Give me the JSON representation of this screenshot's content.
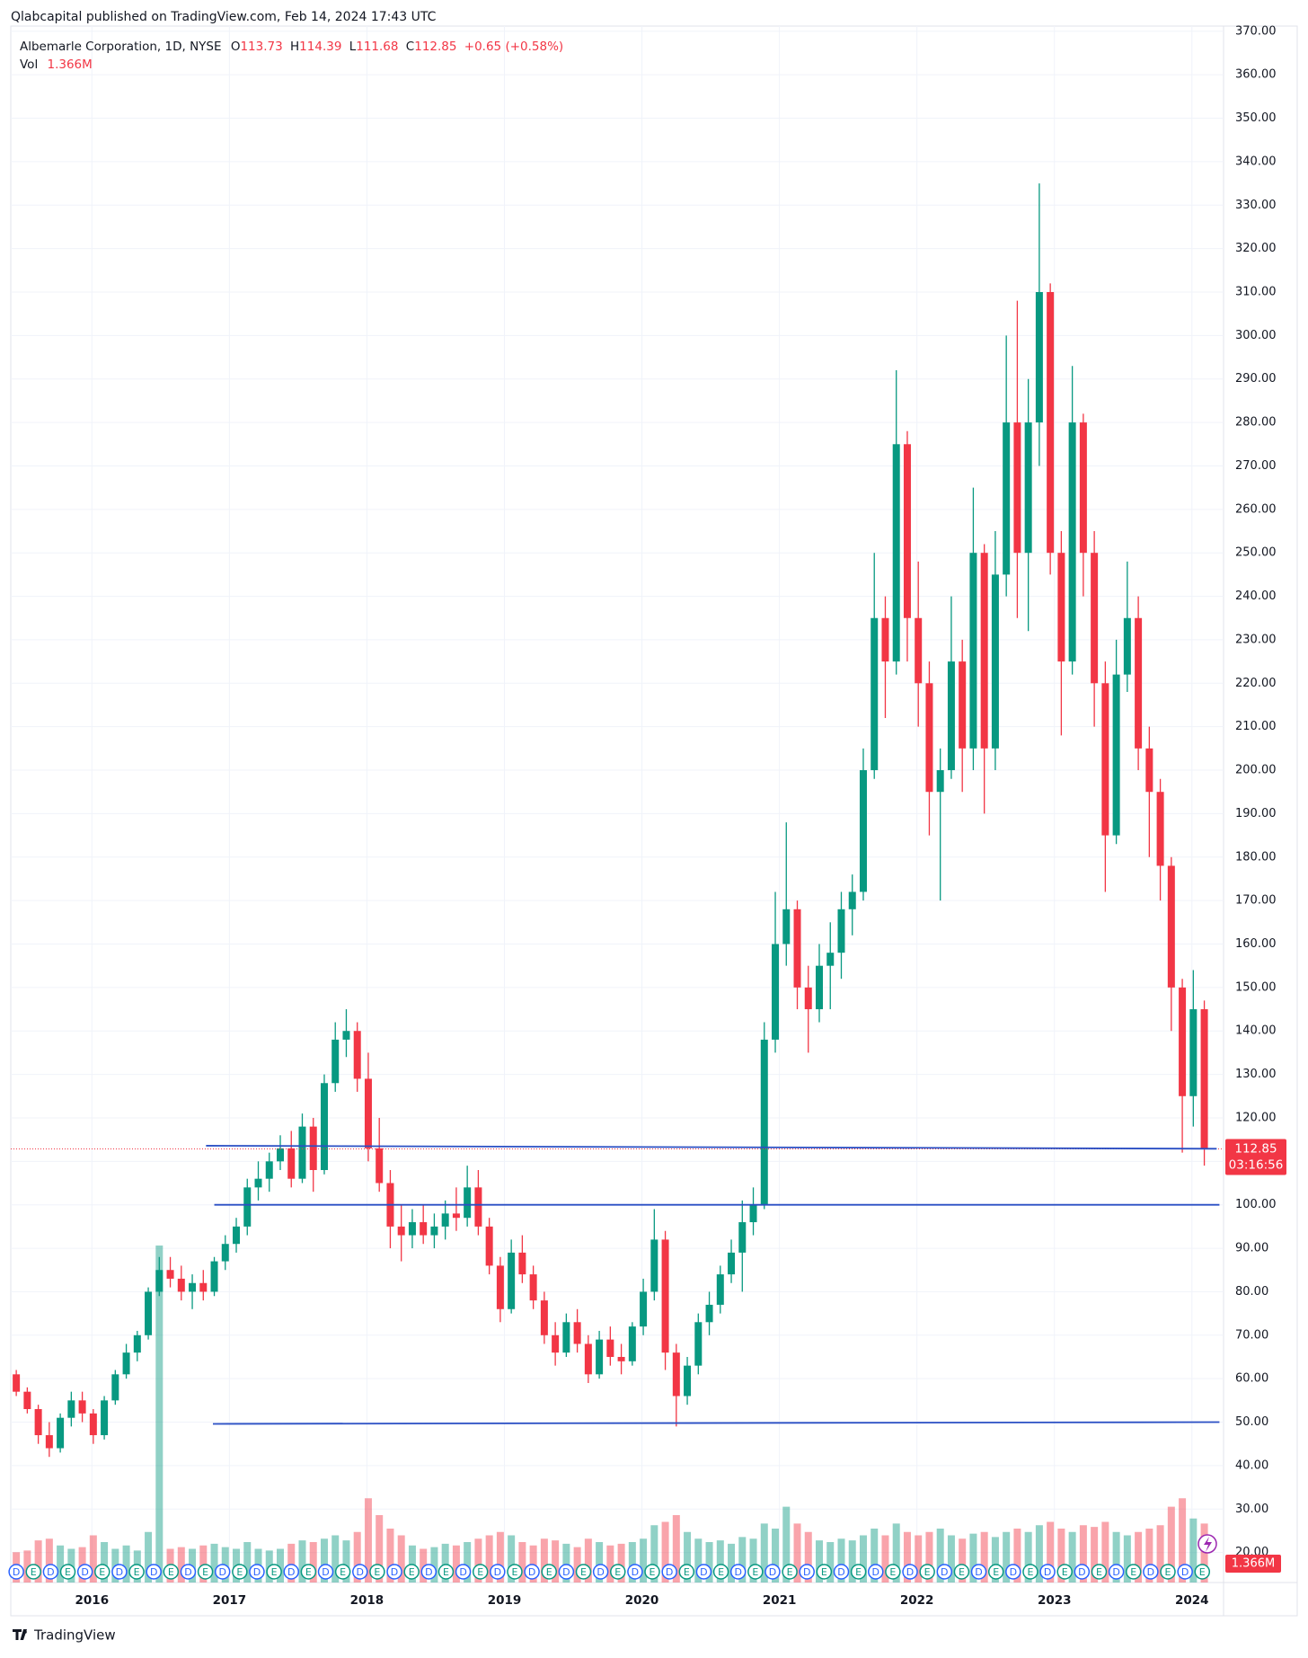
{
  "header": "Qlabcapital published on TradingView.com, Feb 14, 2024 17:43 UTC",
  "legend": {
    "symbol": "Albemarle Corporation, 1D, NYSE",
    "open_label": "O",
    "open": 113.73,
    "high_label": "H",
    "high": 114.39,
    "low_label": "L",
    "low": 111.68,
    "close_label": "C",
    "close": 112.85,
    "change": "+0.65 (+0.58%)",
    "vol_label": "Vol",
    "vol": "1.366M"
  },
  "countdown": "03:16:56",
  "footer": "TradingView",
  "chart_data": {
    "type": "candlestick",
    "up_color": "#089981",
    "down_color": "#f23645",
    "xlim": [
      2015.41,
      2024.23
    ],
    "xticks": [
      2016,
      2017,
      2018,
      2019,
      2020,
      2021,
      2022,
      2023,
      2024
    ],
    "ylim": [
      13.1,
      371.2
    ],
    "yticks": [
      {
        "value": 20,
        "label": "20.00"
      },
      {
        "value": 30,
        "label": "30.00"
      },
      {
        "value": 40,
        "label": "40.00"
      },
      {
        "value": 50,
        "label": "50.00"
      },
      {
        "value": 60,
        "label": "60.00"
      },
      {
        "value": 70,
        "label": "70.00"
      },
      {
        "value": 80,
        "label": "80.00"
      },
      {
        "value": 90,
        "label": "90.00"
      },
      {
        "value": 100,
        "label": "100.00"
      },
      {
        "value": 110,
        "label": "110.00"
      },
      {
        "value": 120,
        "label": "120.00"
      },
      {
        "value": 130,
        "label": "130.00"
      },
      {
        "value": 140,
        "label": "140.00"
      },
      {
        "value": 150,
        "label": "150.00"
      },
      {
        "value": 160,
        "label": "160.00"
      },
      {
        "value": 170,
        "label": "170.00"
      },
      {
        "value": 180,
        "label": "180.00"
      },
      {
        "value": 190,
        "label": "190.00"
      },
      {
        "value": 200,
        "label": "200.00"
      },
      {
        "value": 210,
        "label": "210.00"
      },
      {
        "value": 220,
        "label": "220.00"
      },
      {
        "value": 230,
        "label": "230.00"
      },
      {
        "value": 240,
        "label": "240.00"
      },
      {
        "value": 250,
        "label": "250.00"
      },
      {
        "value": 260,
        "label": "260.00"
      },
      {
        "value": 270,
        "label": "270.00"
      },
      {
        "value": 280,
        "label": "280.00"
      },
      {
        "value": 290,
        "label": "290.00"
      },
      {
        "value": 300,
        "label": "300.00"
      },
      {
        "value": 310,
        "label": "310.00"
      },
      {
        "value": 320,
        "label": "320.00"
      },
      {
        "value": 330,
        "label": "330.00"
      },
      {
        "value": 340,
        "label": "340.00"
      },
      {
        "value": 350,
        "label": "350.00"
      },
      {
        "value": 360,
        "label": "360.00"
      },
      {
        "value": 370,
        "label": "370.00"
      }
    ],
    "grid": true,
    "vol_ylim": [
      0,
      8
    ],
    "candles": {
      "x": [
        2015.45,
        2015.53,
        2015.61,
        2015.69,
        2015.77,
        2015.85,
        2015.93,
        2016.01,
        2016.09,
        2016.17,
        2016.25,
        2016.33,
        2016.41,
        2016.49,
        2016.57,
        2016.65,
        2016.73,
        2016.81,
        2016.89,
        2016.97,
        2017.05,
        2017.13,
        2017.21,
        2017.29,
        2017.37,
        2017.45,
        2017.53,
        2017.61,
        2017.69,
        2017.77,
        2017.85,
        2017.93,
        2018.01,
        2018.09,
        2018.17,
        2018.25,
        2018.33,
        2018.41,
        2018.49,
        2018.57,
        2018.65,
        2018.73,
        2018.81,
        2018.89,
        2018.97,
        2019.05,
        2019.13,
        2019.21,
        2019.29,
        2019.37,
        2019.45,
        2019.53,
        2019.61,
        2019.69,
        2019.77,
        2019.85,
        2019.93,
        2020.01,
        2020.09,
        2020.17,
        2020.25,
        2020.33,
        2020.41,
        2020.49,
        2020.57,
        2020.65,
        2020.73,
        2020.81,
        2020.89,
        2020.97,
        2021.05,
        2021.13,
        2021.21,
        2021.29,
        2021.37,
        2021.45,
        2021.53,
        2021.61,
        2021.69,
        2021.77,
        2021.85,
        2021.93,
        2022.01,
        2022.09,
        2022.17,
        2022.25,
        2022.33,
        2022.41,
        2022.49,
        2022.57,
        2022.65,
        2022.73,
        2022.81,
        2022.89,
        2022.97,
        2023.05,
        2023.13,
        2023.21,
        2023.29,
        2023.37,
        2023.45,
        2023.53,
        2023.61,
        2023.69,
        2023.77,
        2023.85,
        2023.93,
        2024.01,
        2024.09
      ],
      "open": [
        61,
        57,
        53,
        47,
        44,
        51,
        55,
        52,
        47,
        55,
        61,
        66,
        70,
        80,
        85,
        83,
        80,
        82,
        80,
        87,
        91,
        95,
        104,
        106,
        110,
        113,
        106,
        118,
        108,
        128,
        138,
        140,
        129,
        113,
        105,
        95,
        93,
        96,
        93,
        95,
        98,
        97,
        104,
        95,
        86,
        76,
        89,
        84,
        78,
        70,
        66,
        73,
        68,
        61,
        69,
        65,
        64,
        72,
        80,
        92,
        66,
        56,
        63,
        73,
        77,
        84,
        89,
        96,
        100,
        138,
        160,
        168,
        150,
        145,
        155,
        158,
        168,
        172,
        200,
        235,
        225,
        275,
        235,
        220,
        195,
        200,
        225,
        205,
        250,
        205,
        245,
        280,
        250,
        280,
        310,
        250,
        225,
        280,
        250,
        220,
        185,
        222,
        235,
        205,
        195,
        178,
        150,
        125,
        145
      ],
      "high": [
        62,
        58,
        54,
        50,
        52,
        57,
        57,
        53,
        56,
        62,
        68,
        71,
        81,
        88,
        88,
        86,
        84,
        85,
        88,
        93,
        97,
        106,
        110,
        112,
        116,
        117,
        121,
        120,
        130,
        142,
        145,
        142,
        135,
        120,
        108,
        100,
        99,
        100,
        98,
        101,
        104,
        109,
        108,
        97,
        88,
        92,
        93,
        86,
        80,
        73,
        75,
        76,
        70,
        71,
        72,
        68,
        73,
        83,
        99,
        94,
        68,
        65,
        75,
        80,
        86,
        92,
        101,
        104,
        142,
        172,
        188,
        170,
        155,
        160,
        165,
        172,
        176,
        205,
        250,
        240,
        292,
        278,
        248,
        225,
        205,
        240,
        230,
        265,
        252,
        255,
        300,
        308,
        290,
        335,
        312,
        255,
        293,
        282,
        255,
        225,
        230,
        248,
        240,
        210,
        198,
        180,
        152,
        154,
        147
      ],
      "low": [
        56,
        52,
        45,
        42,
        43,
        49,
        50,
        45,
        46,
        54,
        60,
        64,
        69,
        79,
        81,
        78,
        76,
        78,
        79,
        85,
        89,
        93,
        101,
        103,
        108,
        104,
        105,
        103,
        107,
        126,
        134,
        126,
        110,
        103,
        90,
        87,
        90,
        91,
        90,
        92,
        94,
        95,
        93,
        84,
        73,
        75,
        82,
        76,
        68,
        63,
        65,
        66,
        59,
        60,
        63,
        61,
        63,
        70,
        78,
        62,
        49,
        54,
        61,
        70,
        75,
        82,
        80,
        93,
        99,
        135,
        155,
        145,
        135,
        142,
        145,
        152,
        162,
        170,
        198,
        212,
        222,
        225,
        210,
        185,
        170,
        198,
        195,
        200,
        190,
        200,
        240,
        235,
        232,
        270,
        245,
        208,
        222,
        240,
        210,
        172,
        183,
        218,
        200,
        180,
        170,
        140,
        112,
        118,
        109
      ],
      "close": [
        57,
        53,
        47,
        44,
        51,
        55,
        52,
        47,
        55,
        61,
        66,
        70,
        80,
        85,
        83,
        80,
        82,
        80,
        87,
        91,
        95,
        104,
        106,
        110,
        113,
        106,
        118,
        108,
        128,
        138,
        140,
        129,
        113,
        105,
        95,
        93,
        96,
        93,
        95,
        98,
        97,
        104,
        95,
        86,
        76,
        89,
        84,
        78,
        70,
        66,
        73,
        68,
        61,
        69,
        65,
        64,
        72,
        80,
        92,
        66,
        56,
        63,
        73,
        77,
        84,
        89,
        96,
        100,
        138,
        160,
        168,
        150,
        145,
        155,
        158,
        168,
        172,
        200,
        235,
        225,
        275,
        235,
        220,
        195,
        200,
        225,
        205,
        250,
        205,
        245,
        280,
        250,
        280,
        310,
        250,
        225,
        280,
        250,
        220,
        185,
        222,
        235,
        205,
        195,
        178,
        150,
        125,
        145,
        112.85
      ],
      "volume": [
        1.8,
        1.9,
        2.5,
        2.6,
        2.2,
        2.0,
        2.1,
        2.8,
        2.4,
        2.0,
        2.2,
        1.9,
        3.0,
        20,
        2.0,
        2.1,
        2.0,
        2.2,
        2.3,
        2.1,
        2.0,
        2.4,
        2.0,
        1.9,
        2.0,
        2.3,
        2.5,
        2.4,
        2.6,
        2.8,
        2.5,
        3.0,
        5.0,
        4.0,
        3.2,
        2.8,
        2.2,
        2.0,
        2.1,
        2.3,
        2.2,
        2.4,
        2.6,
        2.8,
        3.0,
        2.8,
        2.4,
        2.2,
        2.6,
        2.5,
        2.3,
        2.1,
        2.6,
        2.4,
        2.2,
        2.3,
        2.4,
        2.6,
        3.4,
        3.6,
        4.0,
        3.0,
        2.6,
        2.4,
        2.5,
        2.3,
        2.7,
        2.6,
        3.5,
        3.2,
        4.5,
        3.5,
        3.0,
        2.5,
        2.4,
        2.6,
        2.5,
        2.8,
        3.2,
        2.8,
        3.5,
        3.0,
        2.8,
        3.0,
        3.2,
        2.8,
        2.6,
        2.9,
        3.0,
        2.7,
        3.0,
        3.2,
        3.0,
        3.4,
        3.6,
        3.2,
        3.0,
        3.4,
        3.3,
        3.6,
        3.0,
        2.8,
        3.0,
        3.2,
        3.4,
        4.5,
        5.0,
        3.8,
        3.5
      ]
    },
    "hlines": {
      "color": "#2a4fc4",
      "lines": [
        {
          "x": [
            2016.83,
            2024.18
          ],
          "y": [
            113.6,
            112.9
          ]
        },
        {
          "x": [
            2016.89,
            2024.2
          ],
          "y": [
            100,
            100
          ]
        },
        {
          "x": [
            2016.88,
            2024.2
          ],
          "y": [
            49.6,
            50
          ]
        }
      ]
    },
    "dividends": {
      "label": "D",
      "color": "#2962ff",
      "x": [
        2015.45,
        2015.7,
        2015.95,
        2016.2,
        2016.45,
        2016.7,
        2016.95,
        2017.2,
        2017.45,
        2017.7,
        2017.95,
        2018.2,
        2018.45,
        2018.7,
        2018.95,
        2019.2,
        2019.45,
        2019.7,
        2019.95,
        2020.2,
        2020.45,
        2020.7,
        2020.95,
        2021.2,
        2021.45,
        2021.7,
        2021.95,
        2022.2,
        2022.45,
        2022.7,
        2022.95,
        2023.2,
        2023.45,
        2023.7,
        2023.95
      ]
    },
    "earnings": {
      "label": "E",
      "color": "#089981",
      "x": [
        2015.575,
        2015.825,
        2016.075,
        2016.325,
        2016.575,
        2016.825,
        2017.075,
        2017.325,
        2017.575,
        2017.825,
        2018.075,
        2018.325,
        2018.575,
        2018.825,
        2019.075,
        2019.325,
        2019.575,
        2019.825,
        2020.075,
        2020.325,
        2020.575,
        2020.825,
        2021.075,
        2021.325,
        2021.575,
        2021.825,
        2022.075,
        2022.325,
        2022.575,
        2022.825,
        2023.075,
        2023.325,
        2023.575,
        2023.825,
        2024.075
      ]
    }
  }
}
